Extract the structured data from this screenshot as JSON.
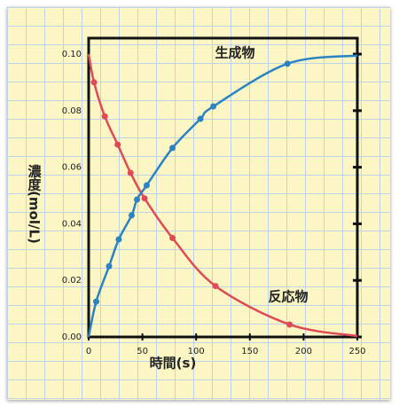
{
  "chart_data": {
    "type": "line",
    "xlabel": "時間(s)",
    "ylabel": "濃度(mol/L)",
    "xlim": [
      0,
      250
    ],
    "ylim": [
      0,
      0.1
    ],
    "xticks": [
      0,
      50,
      100,
      150,
      200,
      250
    ],
    "yticks": [
      {
        "value": 0,
        "label": "0.00"
      },
      0.02,
      0.04,
      0.06,
      0.08,
      {
        "value": 0.1,
        "label": "0.10"
      }
    ],
    "series": [
      {
        "name": "反応物",
        "color": "#e04a55",
        "x": [
          0,
          5,
          15,
          27,
          39,
          52,
          78,
          118,
          187,
          250
        ],
        "values": [
          0.1,
          0.09,
          0.078,
          0.068,
          0.058,
          0.049,
          0.035,
          0.018,
          0.0044,
          0.0003
        ]
      },
      {
        "name": "生成物",
        "color": "#2a83c4",
        "x": [
          0,
          7,
          19,
          28,
          40,
          45,
          54,
          78,
          104,
          116,
          185,
          250
        ],
        "values": [
          0,
          0.0125,
          0.025,
          0.0345,
          0.043,
          0.0486,
          0.0536,
          0.0668,
          0.0771,
          0.0815,
          0.0966,
          0.0995
        ]
      }
    ]
  }
}
